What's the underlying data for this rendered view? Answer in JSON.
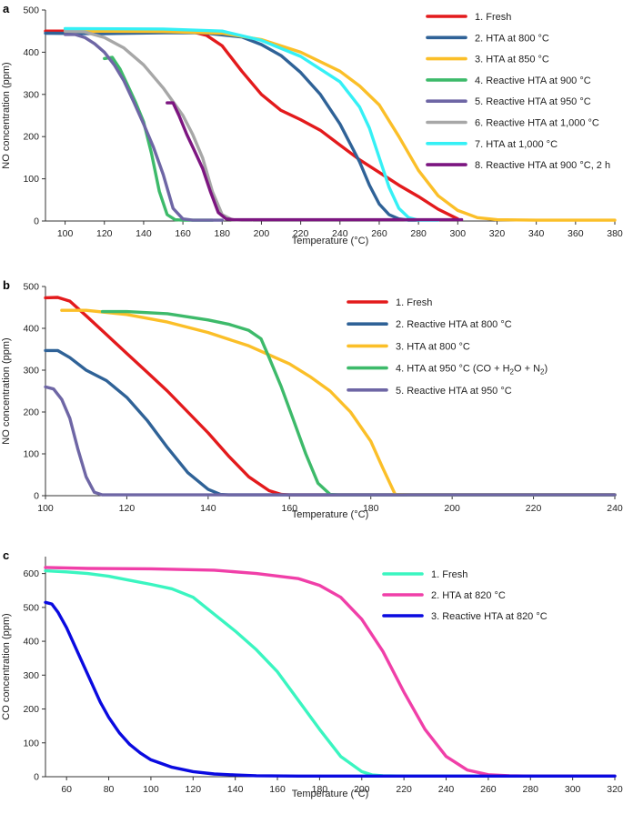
{
  "chart_data": [
    {
      "type": "line",
      "panel_label": "a",
      "xlabel": "Temperature (°C)",
      "ylabel": "NO concentration (ppm)",
      "xlim": [
        90,
        380
      ],
      "ylim": [
        0,
        500
      ],
      "xticks": [
        100,
        120,
        140,
        160,
        180,
        200,
        220,
        240,
        260,
        280,
        300,
        320,
        340,
        360,
        380
      ],
      "yticks": [
        0,
        100,
        200,
        300,
        400,
        500
      ],
      "legend_position": "top-right",
      "series": [
        {
          "name": "1. Fresh",
          "color": "#e31a1c",
          "x": [
            90,
            150,
            165,
            172,
            180,
            190,
            200,
            210,
            220,
            230,
            240,
            250,
            260,
            270,
            280,
            290,
            300
          ],
          "y": [
            450,
            450,
            448,
            440,
            415,
            355,
            300,
            262,
            240,
            215,
            180,
            145,
            115,
            85,
            58,
            28,
            5
          ]
        },
        {
          "name": "2. HTA at 800 °C",
          "color": "#2f6297",
          "x": [
            90,
            120,
            150,
            170,
            190,
            200,
            210,
            220,
            230,
            240,
            250,
            255,
            260,
            265,
            270,
            275,
            280
          ],
          "y": [
            445,
            444,
            446,
            446,
            436,
            418,
            392,
            352,
            300,
            230,
            140,
            85,
            40,
            15,
            5,
            2,
            2
          ]
        },
        {
          "name": "3. HTA at 850 °C",
          "color": "#fbbf28",
          "x": [
            100,
            150,
            180,
            200,
            220,
            240,
            250,
            260,
            270,
            280,
            290,
            300,
            310,
            320,
            340,
            380
          ],
          "y": [
            450,
            449,
            445,
            430,
            400,
            355,
            320,
            275,
            200,
            120,
            60,
            25,
            8,
            3,
            2,
            2
          ]
        },
        {
          "name": "4. Reactive HTA at 900 °C",
          "color": "#3dba6a",
          "x": [
            120,
            124,
            128,
            132,
            136,
            140,
            144,
            148,
            152,
            156,
            160,
            165,
            170,
            175
          ],
          "y": [
            385,
            388,
            360,
            320,
            280,
            235,
            160,
            70,
            15,
            3,
            2,
            2,
            2,
            2
          ]
        },
        {
          "name": "5. Reactive HTA at 950 °C",
          "color": "#6e66a5",
          "x": [
            100,
            105,
            110,
            115,
            120,
            125,
            130,
            135,
            140,
            145,
            150,
            155,
            160,
            165,
            170,
            180
          ],
          "y": [
            442,
            442,
            435,
            420,
            400,
            370,
            332,
            282,
            230,
            175,
            110,
            30,
            5,
            2,
            2,
            2
          ]
        },
        {
          "name": "6. Reactive HTA at 1,000 °C",
          "color": "#a7a7a7",
          "x": [
            100,
            110,
            120,
            130,
            140,
            150,
            160,
            165,
            170,
            175,
            180,
            185,
            190,
            195
          ],
          "y": [
            450,
            448,
            435,
            410,
            370,
            315,
            250,
            205,
            150,
            70,
            15,
            3,
            2,
            2
          ]
        },
        {
          "name": "7. HTA at 1,000 °C",
          "color": "#35f0f5",
          "x": [
            100,
            150,
            180,
            200,
            220,
            240,
            250,
            255,
            260,
            265,
            270,
            275,
            280,
            285,
            290
          ],
          "y": [
            456,
            455,
            450,
            428,
            390,
            330,
            270,
            220,
            150,
            80,
            30,
            8,
            2,
            2,
            2
          ]
        },
        {
          "name": "8. Reactive HTA at 900 °C, 2 h",
          "color": "#7c1580",
          "x": [
            152,
            155,
            158,
            162,
            166,
            170,
            174,
            178,
            182,
            186,
            190,
            200,
            250,
            302
          ],
          "y": [
            280,
            280,
            250,
            205,
            165,
            125,
            70,
            20,
            5,
            3,
            3,
            3,
            3,
            3
          ]
        }
      ]
    },
    {
      "type": "line",
      "panel_label": "b",
      "xlabel": "Temperature (°C)",
      "ylabel": "NO concentration (ppm)",
      "xlim": [
        100,
        240
      ],
      "ylim": [
        0,
        500
      ],
      "xticks": [
        100,
        120,
        140,
        160,
        180,
        200,
        220,
        240
      ],
      "yticks": [
        0,
        100,
        200,
        300,
        400,
        500
      ],
      "legend_position": "top-right",
      "series": [
        {
          "name": "1. Fresh",
          "color": "#e31a1c",
          "name_sub": "",
          "x": [
            100,
            103,
            106,
            110,
            115,
            120,
            125,
            130,
            135,
            140,
            145,
            150,
            155,
            158,
            160,
            165,
            240
          ],
          "y": [
            473,
            474,
            465,
            430,
            385,
            340,
            295,
            250,
            200,
            150,
            95,
            45,
            12,
            3,
            2,
            2,
            2
          ]
        },
        {
          "name": "2. Reactive HTA at 800 °C",
          "color": "#2f6297",
          "name_sub": "",
          "x": [
            100,
            103,
            106,
            110,
            115,
            120,
            125,
            130,
            135,
            140,
            143,
            145,
            150,
            240
          ],
          "y": [
            347,
            347,
            330,
            300,
            275,
            235,
            180,
            115,
            55,
            15,
            3,
            2,
            2,
            2
          ]
        },
        {
          "name": "3. HTA at 800 °C",
          "color": "#fbbf28",
          "name_sub": "",
          "x": [
            104,
            110,
            120,
            130,
            140,
            150,
            160,
            165,
            170,
            175,
            180,
            183,
            186,
            190,
            240
          ],
          "y": [
            443,
            443,
            433,
            415,
            390,
            358,
            315,
            285,
            250,
            200,
            130,
            65,
            3,
            2,
            2
          ]
        },
        {
          "name": "4. HTA at 950 °C (CO + H",
          "name_sub": "2",
          "name_post": "O + N",
          "name_sub2": "2",
          "name_end": ")",
          "color": "#3dba6a",
          "x": [
            114,
            120,
            130,
            140,
            145,
            150,
            153,
            155,
            158,
            161,
            164,
            167,
            170,
            172,
            240
          ],
          "y": [
            440,
            440,
            435,
            420,
            410,
            395,
            375,
            330,
            260,
            180,
            100,
            30,
            3,
            2,
            2
          ]
        },
        {
          "name": "5. Reactive HTA at 950 °C",
          "color": "#6e66a5",
          "name_sub": "",
          "x": [
            100,
            102,
            104,
            106,
            108,
            110,
            112,
            114,
            116,
            240
          ],
          "y": [
            260,
            255,
            230,
            185,
            110,
            45,
            8,
            2,
            2,
            2
          ]
        }
      ]
    },
    {
      "type": "line",
      "panel_label": "c",
      "xlabel": "Temperature (°C)",
      "ylabel": "CO concentration (ppm)",
      "xlim": [
        50,
        320
      ],
      "ylim": [
        0,
        650
      ],
      "xticks": [
        60,
        80,
        100,
        120,
        140,
        160,
        180,
        200,
        220,
        240,
        260,
        280,
        300,
        320
      ],
      "yticks": [
        0,
        100,
        200,
        300,
        400,
        500,
        600
      ],
      "legend_position": "top-right",
      "series": [
        {
          "name": "1. Fresh",
          "color": "#3af5c0",
          "x": [
            50,
            60,
            70,
            80,
            90,
            100,
            110,
            120,
            130,
            140,
            150,
            160,
            170,
            180,
            190,
            200,
            205,
            210,
            220,
            320
          ],
          "y": [
            608,
            605,
            600,
            592,
            580,
            568,
            555,
            530,
            480,
            430,
            375,
            310,
            225,
            140,
            60,
            15,
            5,
            3,
            2,
            2
          ]
        },
        {
          "name": "2. HTA at 820 °C",
          "color": "#f03fa8",
          "x": [
            50,
            70,
            100,
            130,
            150,
            170,
            180,
            190,
            200,
            210,
            220,
            230,
            240,
            250,
            260,
            270,
            280,
            320
          ],
          "y": [
            618,
            615,
            614,
            610,
            600,
            585,
            565,
            530,
            465,
            370,
            250,
            140,
            60,
            20,
            6,
            3,
            2,
            2
          ]
        },
        {
          "name": "3. Reactive HTA at 820 °C",
          "color": "#0a0ae0",
          "x": [
            50,
            53,
            56,
            60,
            64,
            68,
            72,
            76,
            80,
            85,
            90,
            95,
            100,
            110,
            120,
            130,
            140,
            150,
            170,
            320
          ],
          "y": [
            515,
            510,
            485,
            440,
            385,
            330,
            275,
            220,
            175,
            130,
            95,
            70,
            50,
            28,
            15,
            8,
            5,
            3,
            2,
            2
          ]
        }
      ]
    }
  ]
}
